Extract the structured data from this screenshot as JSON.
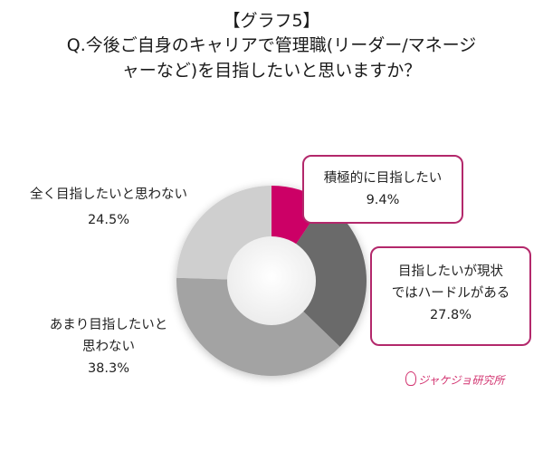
{
  "title": {
    "line1": "【グラフ5】",
    "line2": "Q.今後ご自身のキャリアで管理職(リーダー/マネージ",
    "line3": "ャーなど)を目指したいと思いますか？"
  },
  "labels": {
    "seg0": {
      "line1": "積極的に目指したい",
      "value": "9.4%"
    },
    "seg1": {
      "line1": "目指したいが現状",
      "line2": "ではハードルがある",
      "value": "27.8%"
    },
    "seg2": {
      "line1": "あまり目指したいと",
      "line2": "思わない",
      "value": "38.3%"
    },
    "seg3": {
      "line1": "全く目指したいと思わない",
      "value": "24.5%"
    }
  },
  "logo": {
    "text": "ジャケジョ研究所"
  },
  "colors": {
    "accent": "#cc0066",
    "callout_border": "#b3286b",
    "seg_dark": "#6b6b6b",
    "seg_mid": "#a3a3a3",
    "seg_light": "#cfcfcf"
  },
  "chart_data": {
    "type": "pie",
    "subtype": "donut",
    "title": "【グラフ5】 Q.今後ご自身のキャリアで管理職(リーダー/マネージャーなど)を目指したいと思いますか？",
    "categories": [
      "積極的に目指したい",
      "目指したいが現状ではハードルがある",
      "あまり目指したいと思わない",
      "全く目指したいと思わない"
    ],
    "values": [
      9.4,
      27.8,
      38.3,
      24.5
    ],
    "unit": "%",
    "colors": [
      "#cc0066",
      "#6b6b6b",
      "#a3a3a3",
      "#cfcfcf"
    ],
    "start_angle": "12 o'clock",
    "direction": "clockwise",
    "legend": "none (direct labels with callouts)"
  }
}
